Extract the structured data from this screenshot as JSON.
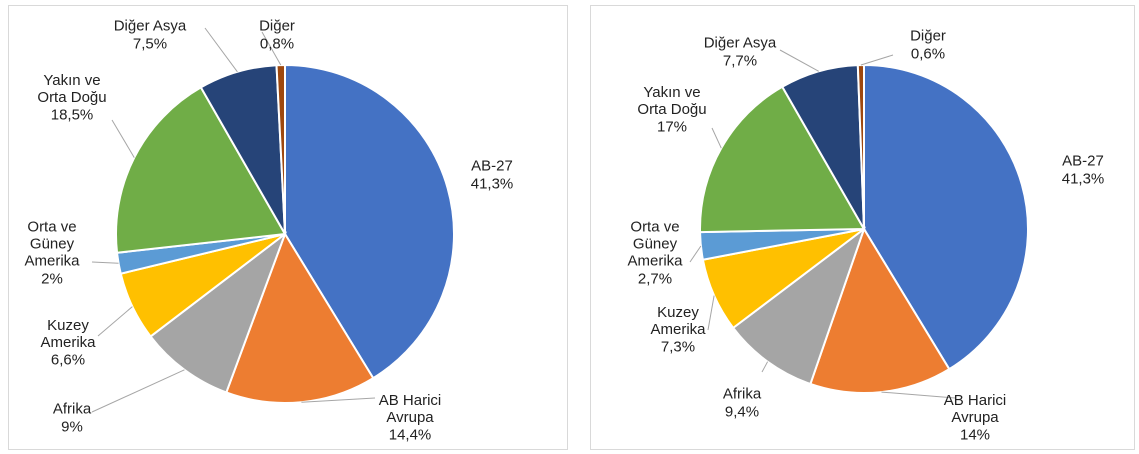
{
  "chart_data": [
    {
      "type": "pie",
      "categories": [
        "AB-27",
        "AB Harici\nAvrupa",
        "Afrika",
        "Kuzey\nAmerika",
        "Orta ve\nGüney\nAmerika",
        "Yakın ve\nOrta Doğu",
        "Diğer Asya",
        "Diğer"
      ],
      "values": [
        41.3,
        14.4,
        9,
        6.6,
        2,
        18.5,
        7.5,
        0.8
      ],
      "value_labels": [
        "41,3%",
        "14,4%",
        "9%",
        "6,6%",
        "2%",
        "18,5%",
        "7,5%",
        "0,8%"
      ],
      "colors": [
        "#4472c4",
        "#ed7d31",
        "#a5a5a5",
        "#ffc000",
        "#5b9bd5",
        "#70ad47",
        "#264478",
        "#9e480e"
      ]
    },
    {
      "type": "pie",
      "categories": [
        "AB-27",
        "AB Harici\nAvrupa",
        "Afrika",
        "Kuzey\nAmerika",
        "Orta ve\nGüney\nAmerika",
        "Yakın ve\nOrta Doğu",
        "Diğer Asya",
        "Diğer"
      ],
      "values": [
        41.3,
        14,
        9.4,
        7.3,
        2.7,
        17,
        7.7,
        0.6
      ],
      "value_labels": [
        "41,3%",
        "14%",
        "9,4%",
        "7,3%",
        "2,7%",
        "17%",
        "7,7%",
        "0,6%"
      ],
      "colors": [
        "#4472c4",
        "#ed7d31",
        "#a5a5a5",
        "#ffc000",
        "#5b9bd5",
        "#70ad47",
        "#264478",
        "#9e480e"
      ]
    }
  ]
}
